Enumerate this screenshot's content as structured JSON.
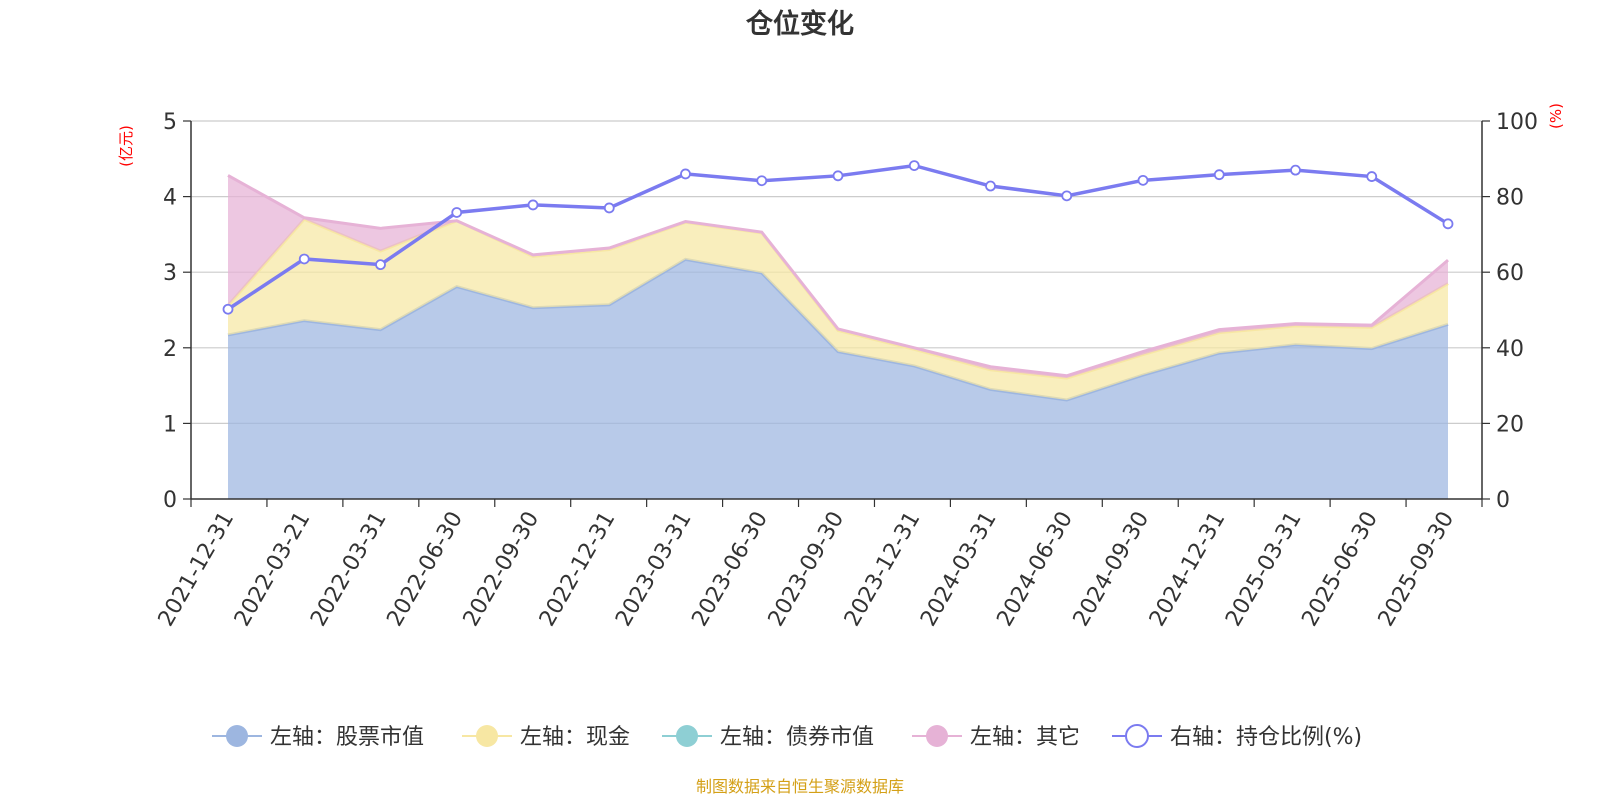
{
  "chart_data": {
    "type": "area",
    "title": "仓位变化",
    "left_axis": {
      "label": "(亿元)",
      "min": 0,
      "max": 5,
      "ticks": [
        0,
        1,
        2,
        3,
        4,
        5
      ]
    },
    "right_axis": {
      "label": "(%)",
      "min": 0,
      "max": 100,
      "ticks": [
        0,
        20,
        40,
        60,
        80,
        100
      ]
    },
    "categories": [
      "2021-12-31",
      "2022-03-21",
      "2022-03-31",
      "2022-06-30",
      "2022-09-30",
      "2022-12-31",
      "2023-03-31",
      "2023-06-30",
      "2023-09-30",
      "2023-12-31",
      "2024-03-31",
      "2024-06-30",
      "2024-09-30",
      "2024-12-31",
      "2025-03-31",
      "2025-06-30",
      "2025-09-30"
    ],
    "series": [
      {
        "name": "左轴：股票市值",
        "axis": "left",
        "kind": "stacked-area",
        "color": "#9db6e0",
        "values": [
          2.17,
          2.36,
          2.24,
          2.81,
          2.53,
          2.57,
          3.17,
          2.99,
          1.95,
          1.76,
          1.45,
          1.31,
          1.64,
          1.93,
          2.04,
          1.99,
          2.31
        ]
      },
      {
        "name": "左轴：现金",
        "axis": "left",
        "kind": "stacked-area",
        "color": "#f7e7a3",
        "values": [
          0.39,
          1.34,
          1.04,
          0.87,
          0.68,
          0.73,
          0.49,
          0.53,
          0.28,
          0.22,
          0.26,
          0.29,
          0.27,
          0.27,
          0.25,
          0.28,
          0.54
        ]
      },
      {
        "name": "左轴：债券市值",
        "axis": "left",
        "kind": "stacked-area",
        "color": "#8ecfd4",
        "values": [
          0,
          0,
          0,
          0,
          0,
          0,
          0,
          0,
          0,
          0,
          0,
          0,
          0,
          0,
          0,
          0,
          0
        ]
      },
      {
        "name": "左轴：其它",
        "axis": "left",
        "kind": "stacked-area",
        "color": "#e6b2d6",
        "values": [
          1.72,
          0.02,
          0.3,
          0.0,
          0.02,
          0.02,
          0.01,
          0.01,
          0.02,
          0.02,
          0.04,
          0.03,
          0.04,
          0.04,
          0.03,
          0.03,
          0.31
        ]
      },
      {
        "name": "右轴：持仓比例(%)",
        "axis": "right",
        "kind": "line",
        "color": "#7b7bf0",
        "values": [
          50.2,
          63.5,
          62.0,
          75.8,
          77.8,
          77.0,
          86.0,
          84.2,
          85.5,
          88.2,
          82.8,
          80.2,
          84.3,
          85.8,
          87.0,
          85.3,
          72.8
        ]
      }
    ],
    "legend_position": "bottom",
    "grid": true
  },
  "source_note": "制图数据来自恒生聚源数据库"
}
